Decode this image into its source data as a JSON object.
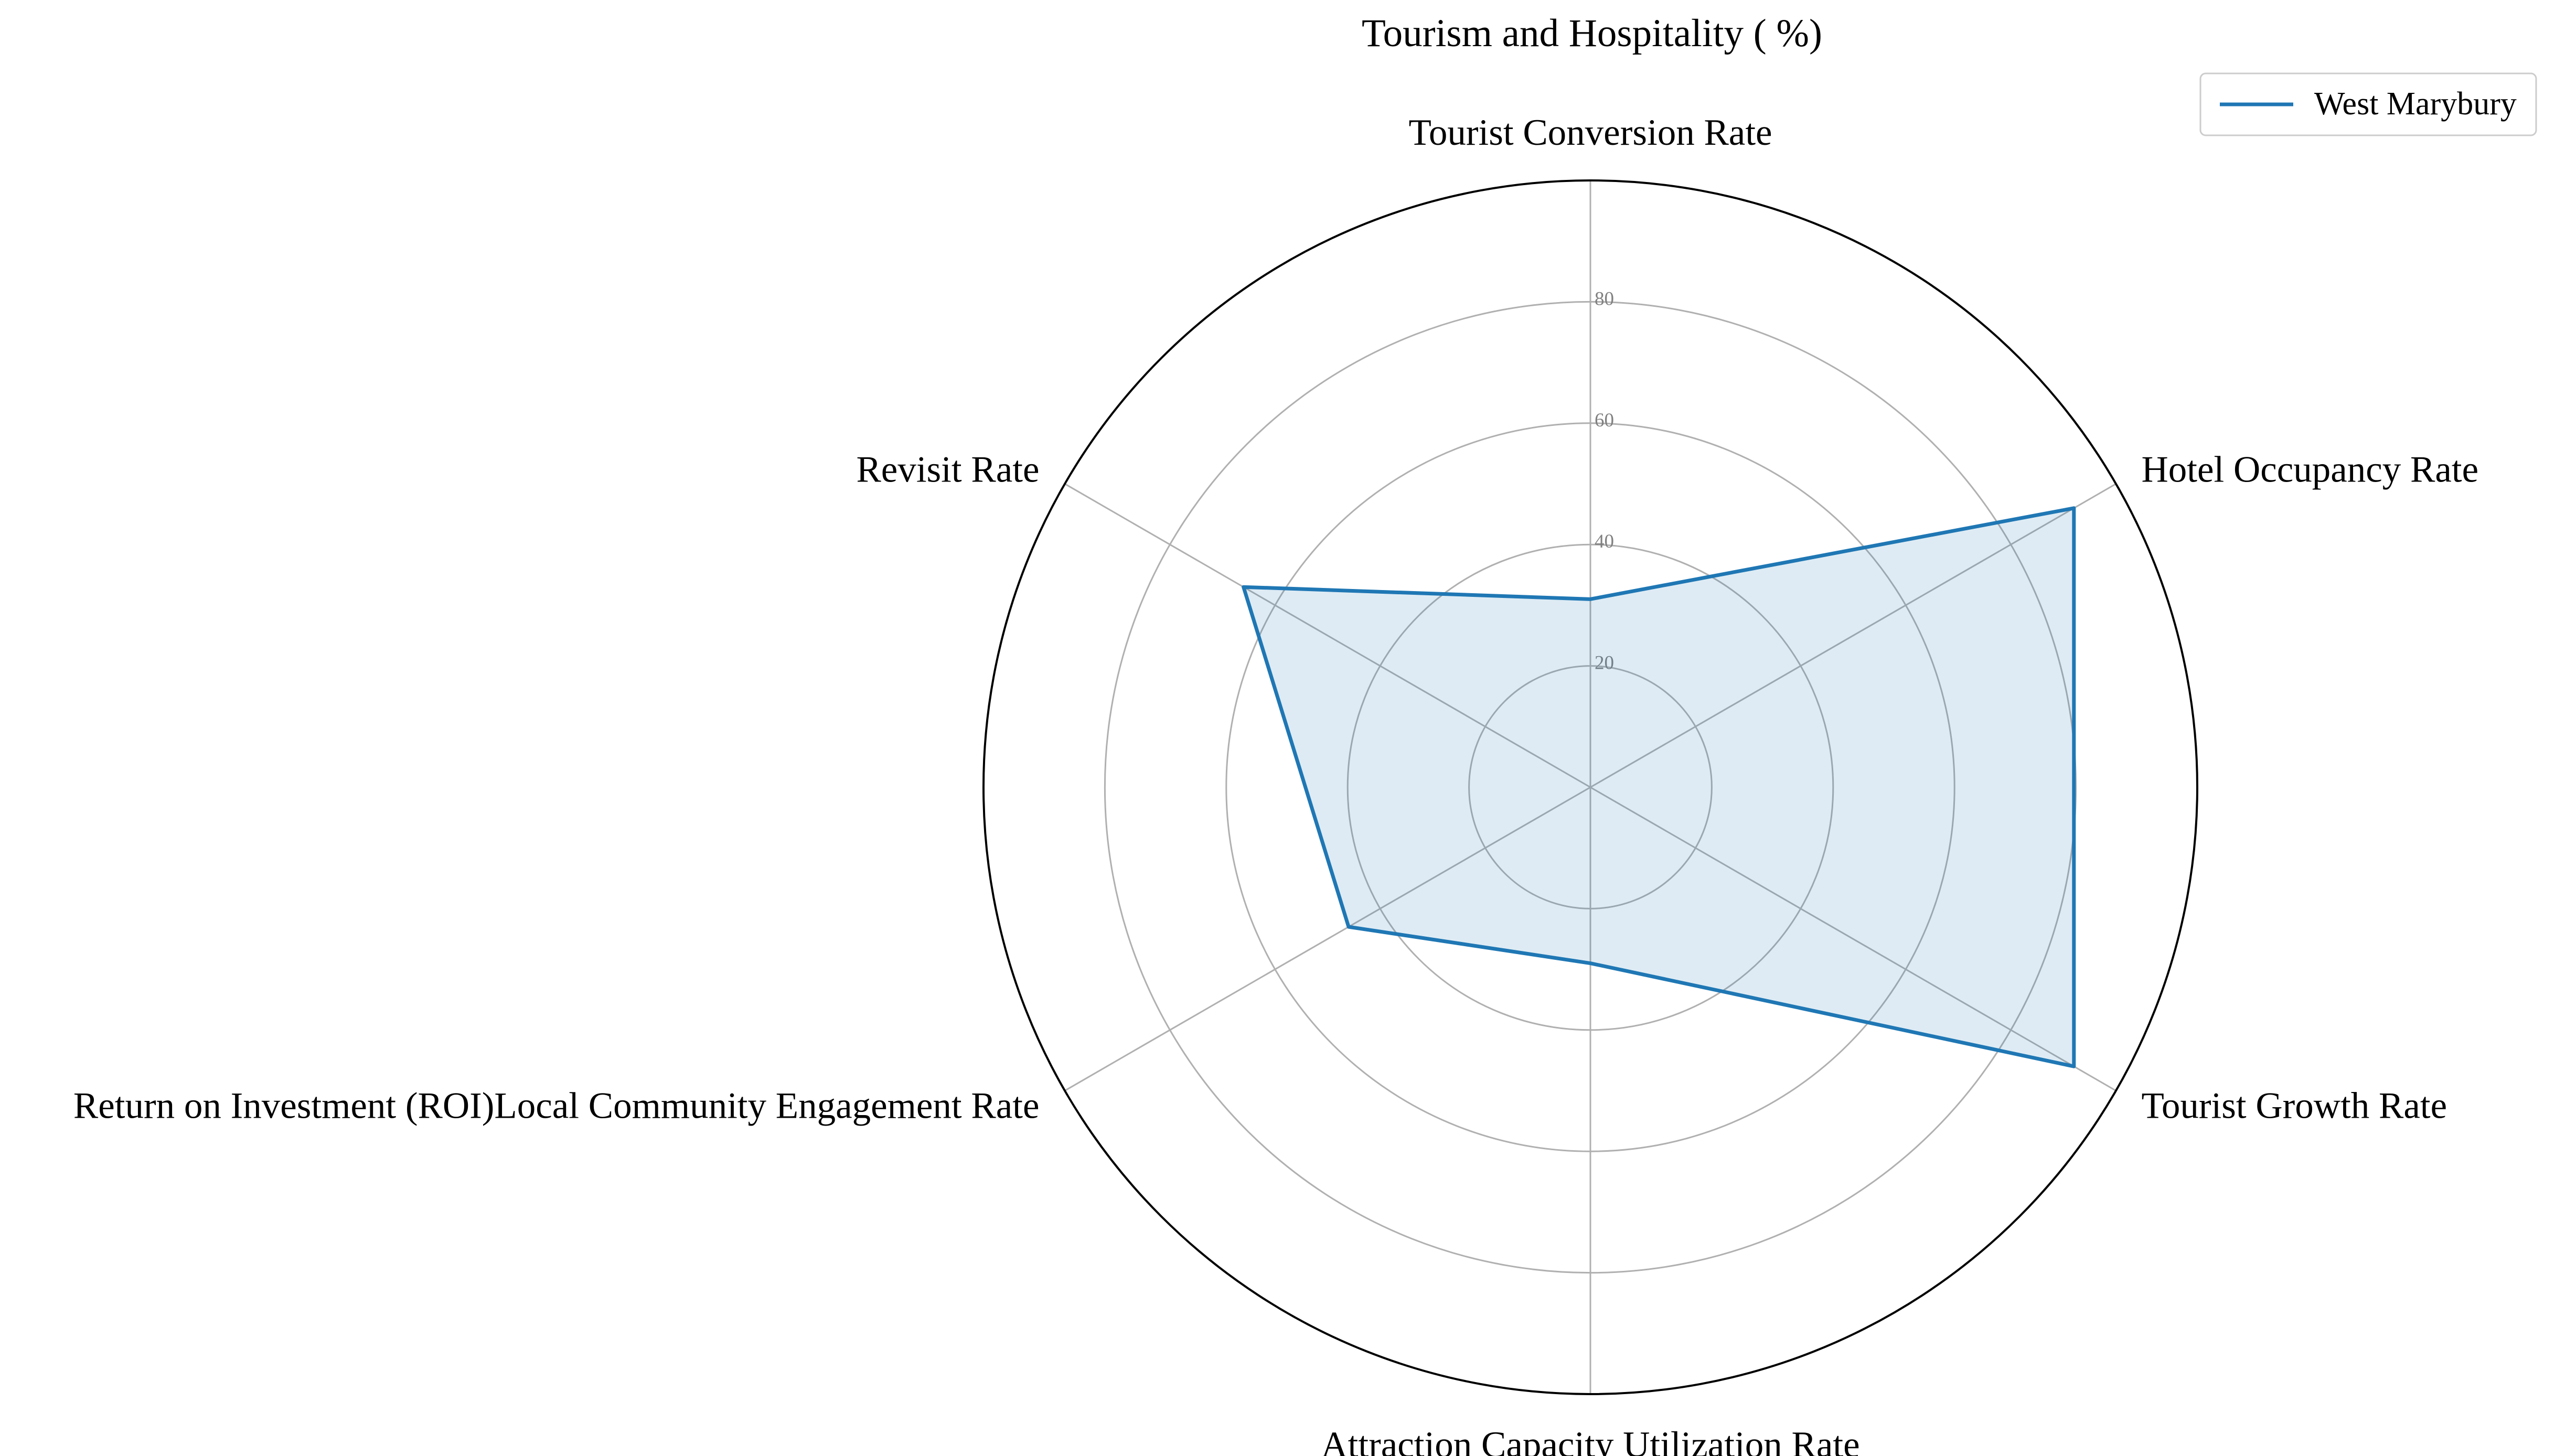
{
  "chart_data": {
    "type": "radar",
    "title": "Tourism and Hospitality ( %)",
    "axes": [
      "Tourist Conversion Rate",
      "Hotel Occupancy Rate",
      "Tourist Growth Rate",
      "Attraction Capacity Utilization Rate",
      "Return on Investment (ROI)Local Community Engagement Rate",
      "Revisit Rate"
    ],
    "radial_ticks": [
      20,
      40,
      60,
      80
    ],
    "rlim": [
      0,
      100
    ],
    "grid": true,
    "legend_position": "top-right",
    "series": [
      {
        "name": "West Marybury",
        "values": [
          31,
          92,
          92,
          29,
          46,
          66
        ],
        "color": "#1f77b4"
      }
    ]
  }
}
